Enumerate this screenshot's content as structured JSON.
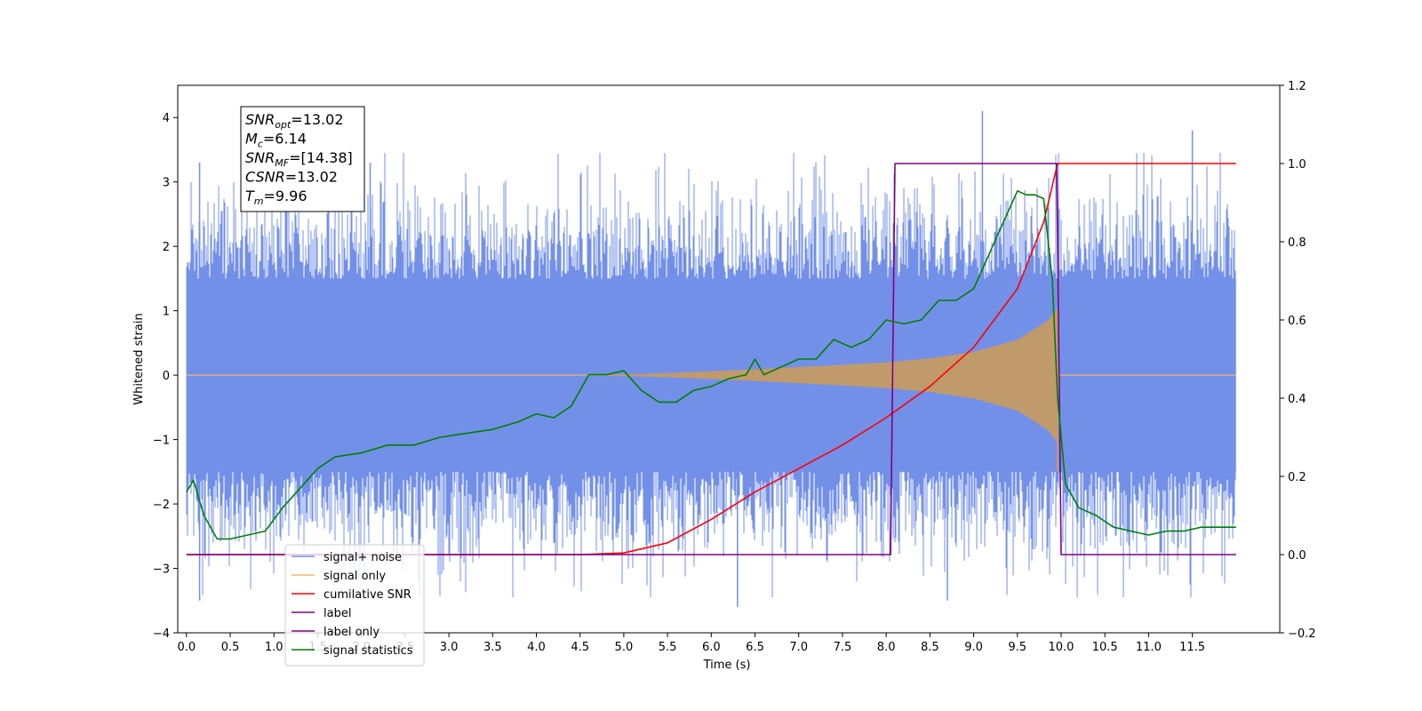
{
  "chart_data": {
    "type": "line",
    "xlabel": "Time (s)",
    "ylabel_left": "Whitened strain",
    "ylabel_right": "",
    "xlim": [
      -0.1,
      12.5
    ],
    "ylim_left": [
      -4,
      4.5
    ],
    "ylim_right": [
      -0.2,
      1.2
    ],
    "x_ticks": [
      "0.0",
      "0.5",
      "1.0",
      "1.5",
      "2.0",
      "2.5",
      "3.0",
      "3.5",
      "4.0",
      "4.5",
      "5.0",
      "5.5",
      "6.0",
      "6.5",
      "7.0",
      "7.5",
      "8.0",
      "8.5",
      "9.0",
      "9.5",
      "10.0",
      "10.5",
      "11.0",
      "11.5"
    ],
    "y_ticks_left": [
      "4",
      "3",
      "2",
      "1",
      "0",
      "−1",
      "−2",
      "−3",
      "−4"
    ],
    "y_ticks_right": [
      "1.2",
      "1.0",
      "0.8",
      "0.6",
      "0.4",
      "0.2",
      "0.0",
      "−0.2"
    ],
    "grid": false,
    "legend_position": "lower-left",
    "legend": [
      {
        "label": "signal+ noise",
        "color": "#6f8de6"
      },
      {
        "label": "signal only",
        "color": "#f5b96a"
      },
      {
        "label": "cumilative SNR",
        "color": "#ff0000"
      },
      {
        "label": "label",
        "color": "#800080"
      },
      {
        "label": "label only",
        "color": "#800080"
      },
      {
        "label": "signal statistics",
        "color": "#008000"
      }
    ],
    "annotation": [
      {
        "base": "SNR",
        "sub": "opt",
        "value": "=13.02"
      },
      {
        "base": "M",
        "sub": "c",
        "value": "=6.14"
      },
      {
        "base": "SNR",
        "sub": "MF",
        "value": "=[14.38]"
      },
      {
        "base": "CSNR",
        "sub": "",
        "value": "=13.02"
      },
      {
        "base": "T",
        "sub": "m",
        "value": "=9.96"
      }
    ],
    "series": [
      {
        "name": "signal+ noise",
        "axis": "left",
        "color": "#7390e8",
        "t_range": [
          0.0,
          12.0
        ],
        "noise_band": [
          -1.5,
          1.5
        ],
        "extreme_peaks": [
          [
            0.15,
            3.3
          ],
          [
            2.1,
            3.3
          ],
          [
            9.1,
            4.1
          ],
          [
            11.5,
            3.8
          ],
          [
            6.3,
            -3.6
          ],
          [
            8.7,
            -3.5
          ],
          [
            0.15,
            -3.5
          ]
        ]
      },
      {
        "name": "signal only",
        "axis": "left",
        "color": "#c09a6b",
        "chirp_start": 4.5,
        "chirp_merger": 9.96,
        "envelope": [
          [
            4.5,
            0.0
          ],
          [
            5.5,
            0.03
          ],
          [
            6.5,
            0.09
          ],
          [
            7.5,
            0.16
          ],
          [
            8.0,
            0.2
          ],
          [
            8.5,
            0.26
          ],
          [
            9.0,
            0.36
          ],
          [
            9.5,
            0.55
          ],
          [
            9.85,
            0.85
          ],
          [
            9.96,
            1.05
          ]
        ],
        "ringdown_min": -1.5
      },
      {
        "name": "cumilative SNR",
        "axis": "right",
        "color": "#ff0000",
        "x": [
          0.0,
          4.5,
          5.0,
          5.5,
          6.0,
          6.5,
          7.0,
          7.5,
          8.0,
          8.5,
          9.0,
          9.5,
          9.8,
          9.96,
          12.0
        ],
        "y": [
          0.0,
          0.0,
          0.004,
          0.03,
          0.09,
          0.16,
          0.22,
          0.28,
          0.35,
          0.43,
          0.53,
          0.68,
          0.85,
          1.0,
          1.0
        ]
      },
      {
        "name": "label",
        "axis": "right",
        "color": "#800080",
        "x": [
          0.0,
          8.05,
          8.1,
          9.95,
          10.0,
          12.0
        ],
        "y": [
          0.0,
          0.0,
          1.0,
          1.0,
          0.0,
          0.0
        ]
      },
      {
        "name": "signal statistics",
        "axis": "right",
        "color": "#008000",
        "x": [
          0.0,
          0.08,
          0.2,
          0.35,
          0.5,
          0.7,
          0.9,
          1.1,
          1.3,
          1.5,
          1.7,
          2.0,
          2.3,
          2.6,
          2.9,
          3.2,
          3.5,
          3.8,
          4.0,
          4.2,
          4.4,
          4.6,
          4.8,
          5.0,
          5.2,
          5.4,
          5.6,
          5.8,
          6.0,
          6.2,
          6.4,
          6.5,
          6.6,
          6.8,
          7.0,
          7.2,
          7.4,
          7.6,
          7.8,
          8.0,
          8.2,
          8.4,
          8.6,
          8.8,
          9.0,
          9.2,
          9.4,
          9.5,
          9.6,
          9.7,
          9.8,
          9.9,
          9.96,
          10.05,
          10.2,
          10.4,
          10.6,
          10.8,
          11.0,
          11.2,
          11.4,
          11.6,
          11.8,
          12.0
        ],
        "y": [
          0.16,
          0.19,
          0.1,
          0.04,
          0.04,
          0.05,
          0.06,
          0.12,
          0.17,
          0.22,
          0.25,
          0.26,
          0.28,
          0.28,
          0.3,
          0.31,
          0.32,
          0.34,
          0.36,
          0.35,
          0.38,
          0.46,
          0.46,
          0.47,
          0.42,
          0.39,
          0.39,
          0.42,
          0.43,
          0.45,
          0.46,
          0.5,
          0.46,
          0.48,
          0.5,
          0.5,
          0.55,
          0.53,
          0.55,
          0.6,
          0.59,
          0.6,
          0.65,
          0.65,
          0.68,
          0.78,
          0.88,
          0.93,
          0.92,
          0.92,
          0.91,
          0.7,
          0.4,
          0.18,
          0.12,
          0.1,
          0.07,
          0.06,
          0.05,
          0.06,
          0.06,
          0.07,
          0.07,
          0.07
        ]
      }
    ]
  }
}
